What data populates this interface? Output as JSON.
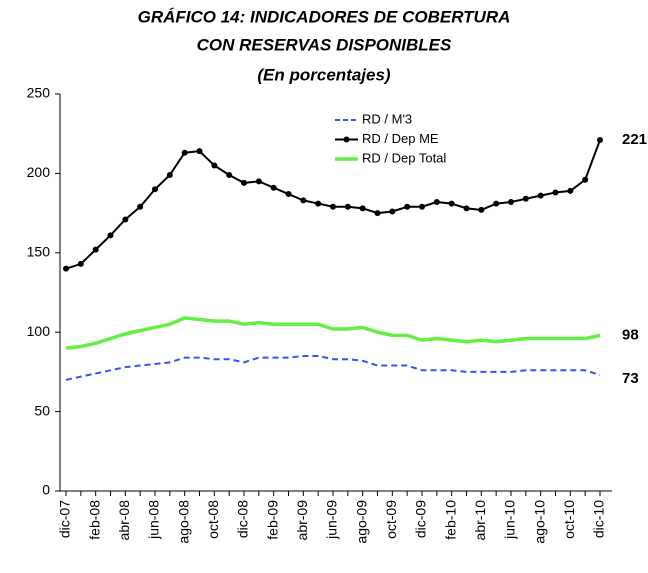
{
  "chart_data": {
    "type": "line",
    "title": [
      "GRÁFICO 14: INDICADORES DE COBERTURA",
      "CON RESERVAS DISPONIBLES"
    ],
    "subtitle": "(En porcentajes)",
    "categories": [
      "dic-07",
      null,
      "feb-08",
      null,
      "abr-08",
      null,
      "jun-08",
      null,
      "ago-08",
      null,
      "oct-08",
      null,
      "dic-08",
      null,
      "feb-09",
      null,
      "abr-09",
      null,
      "jun-09",
      null,
      "ago-09",
      null,
      "oct-09",
      null,
      "dic-09",
      null,
      "feb-10",
      null,
      "abr-10",
      null,
      "jun-10",
      null,
      "ago-10",
      null,
      "oct-10",
      null,
      "dic-10"
    ],
    "series": [
      {
        "name": "RD / M'3",
        "color": "#3355ee",
        "dashed": true,
        "values": [
          70,
          72,
          74,
          76,
          78,
          79,
          80,
          81,
          84,
          84,
          83,
          83,
          81,
          84,
          84,
          84,
          85,
          85,
          83,
          83,
          82,
          79,
          79,
          79,
          76,
          76,
          76,
          75,
          75,
          75,
          75,
          76,
          76,
          76,
          76,
          76,
          73
        ]
      },
      {
        "name": "RD / Dep ME",
        "color": "#000000",
        "markers": true,
        "values": [
          140,
          143,
          152,
          161,
          171,
          179,
          190,
          199,
          213,
          214,
          205,
          199,
          194,
          195,
          191,
          187,
          183,
          181,
          179,
          179,
          178,
          175,
          176,
          179,
          179,
          182,
          181,
          178,
          177,
          181,
          182,
          184,
          186,
          188,
          189,
          196,
          221
        ]
      },
      {
        "name": "RD / Dep Total",
        "color": "#66ee44",
        "values": [
          90,
          91,
          93,
          96,
          99,
          101,
          103,
          105,
          109,
          108,
          107,
          107,
          105,
          106,
          105,
          105,
          105,
          105,
          102,
          102,
          103,
          100,
          98,
          98,
          95,
          96,
          95,
          94,
          95,
          94,
          95,
          96,
          96,
          96,
          96,
          96,
          98
        ]
      }
    ],
    "ylim": [
      0,
      250
    ],
    "yticks": [
      0,
      50,
      100,
      150,
      200,
      250
    ]
  }
}
